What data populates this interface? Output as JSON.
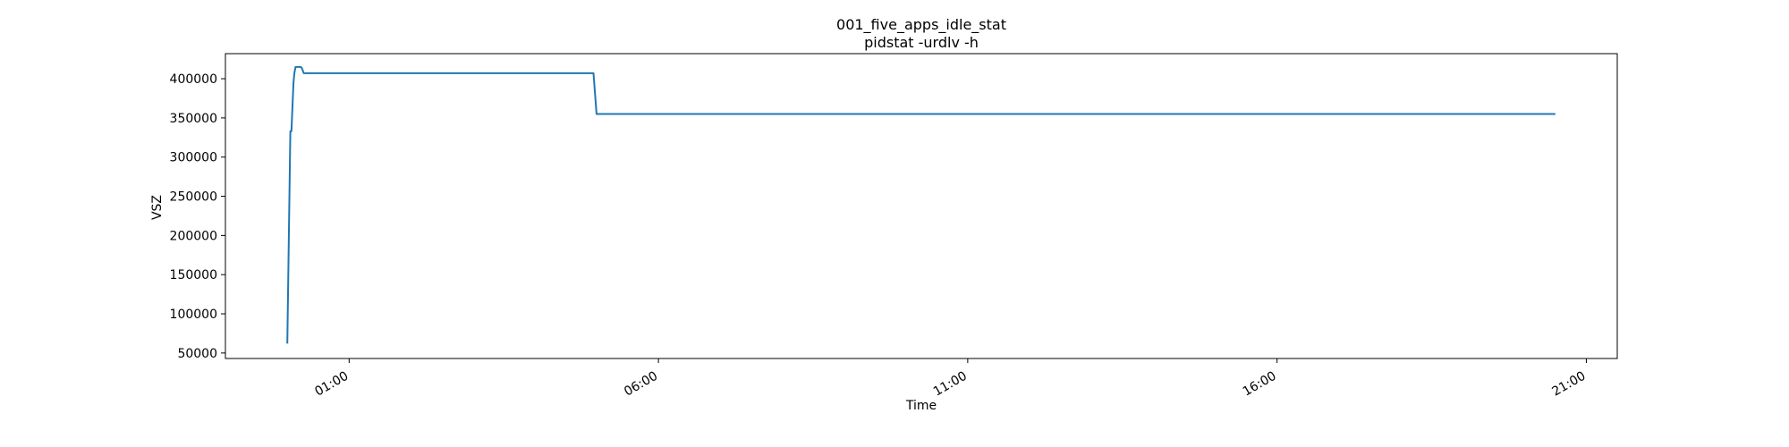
{
  "chart_data": {
    "type": "line",
    "title": "001_five_apps_idle_stat",
    "subtitle": "pidstat -urdlv -h",
    "xlabel": "Time",
    "ylabel": "VSZ",
    "xlim": [
      "23:00",
      "21:30"
    ],
    "ylim": [
      43000,
      432000
    ],
    "grid": false,
    "legend": "none",
    "line_color": "#1f77b4",
    "x_ticks": [
      {
        "label": "01:00",
        "value": "01:00"
      },
      {
        "label": "06:00",
        "value": "06:00"
      },
      {
        "label": "11:00",
        "value": "11:00"
      },
      {
        "label": "16:00",
        "value": "16:00"
      },
      {
        "label": "21:00",
        "value": "21:00"
      }
    ],
    "y_ticks": [
      {
        "label": "50000",
        "value": 50000
      },
      {
        "label": "100000",
        "value": 100000
      },
      {
        "label": "150000",
        "value": 150000
      },
      {
        "label": "200000",
        "value": 200000
      },
      {
        "label": "250000",
        "value": 250000
      },
      {
        "label": "300000",
        "value": 300000
      },
      {
        "label": "350000",
        "value": 350000
      },
      {
        "label": "400000",
        "value": 400000
      }
    ],
    "series": [
      {
        "x": [
          "00:00",
          "00:03",
          "00:04",
          "00:06",
          "00:07",
          "00:08",
          "00:10",
          "00:13",
          "00:14",
          "00:16",
          "00:21",
          "00:22",
          "04:57",
          "05:00",
          "20:30"
        ],
        "y": [
          62000,
          333000,
          333000,
          395000,
          408000,
          415000,
          415000,
          415000,
          414000,
          407000,
          407000,
          407000,
          407000,
          355000,
          355000
        ]
      }
    ]
  }
}
